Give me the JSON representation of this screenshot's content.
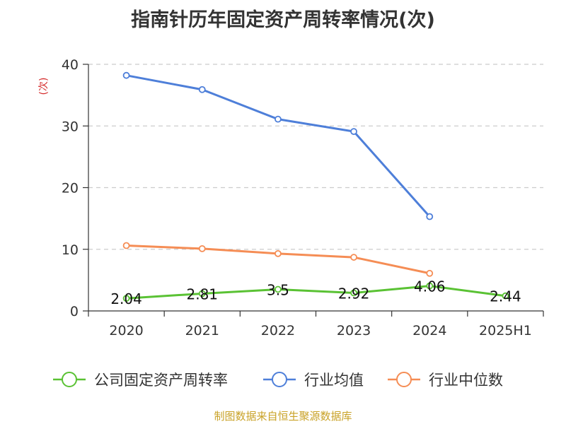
{
  "chart_data": {
    "type": "line",
    "title": "指南针历年固定资产周转率情况(次)",
    "ylabel": "(次)",
    "categories": [
      "2020",
      "2021",
      "2022",
      "2023",
      "2024",
      "2025H1"
    ],
    "ylim": [
      0,
      40
    ],
    "yticks": [
      "0",
      "10",
      "20",
      "30",
      "40"
    ],
    "grid": true,
    "legend_position": "bottom",
    "series": [
      {
        "name": "公司固定资产周转率",
        "color": "#5ac234",
        "values": [
          2.04,
          2.81,
          3.5,
          2.92,
          4.06,
          2.44
        ],
        "labels": [
          "2.04",
          "2.81",
          "3.5",
          "2.92",
          "4.06",
          "2.44"
        ]
      },
      {
        "name": "行业均值",
        "color": "#4e7fd9",
        "values": [
          38.2,
          35.9,
          31.1,
          29.1,
          15.3,
          null
        ]
      },
      {
        "name": "行业中位数",
        "color": "#f58d55",
        "values": [
          10.6,
          10.1,
          9.3,
          8.7,
          6.1,
          null
        ]
      }
    ]
  },
  "footer": "制图数据来自恒生聚源数据库"
}
